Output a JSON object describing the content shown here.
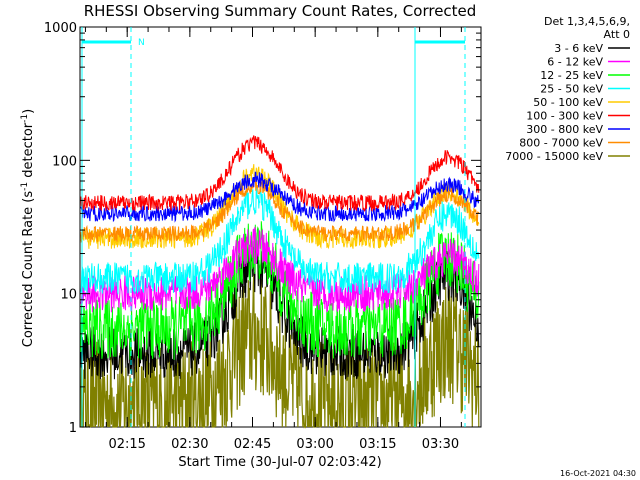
{
  "chart_data": {
    "type": "line",
    "title": "RHESSI Observing Summary Count Rates, Corrected",
    "xlabel": "Start Time (30-Jul-07 02:03:42)",
    "ylabel_main": "Corrected Count Rate (s",
    "ylabel_sup1": "-1",
    "ylabel_mid": " detector",
    "ylabel_sup2": "-1",
    "ylabel_end": ")",
    "yscale": "log",
    "ylim": [
      1,
      1000
    ],
    "xlim_minutes_after_0203": [
      0,
      36.5
    ],
    "yticks": [
      "1",
      "10",
      "100",
      "1000"
    ],
    "xticks": [
      "02:15",
      "02:30",
      "02:45",
      "03:00",
      "03:15",
      "03:30"
    ],
    "legend": {
      "header_line1": "Det 1,3,4,5,6,9,",
      "header_line2": "Att 0",
      "placement": "right"
    },
    "series": [
      {
        "name": "3 - 6 keV",
        "color": "#000000",
        "profile": {
          "base": 3.6,
          "peak1": 16,
          "peak2": 14,
          "noise": 0.05
        }
      },
      {
        "name": "6 - 12 keV",
        "color": "#ff00ff",
        "profile": {
          "base": 10,
          "peak1": 23,
          "peak2": 19,
          "noise": 0.035
        }
      },
      {
        "name": "12 - 25 keV",
        "color": "#00ff00",
        "profile": {
          "base": 5.5,
          "peak1": 22,
          "peak2": 19,
          "noise": 0.06
        }
      },
      {
        "name": "25 - 50 keV",
        "color": "#00ffff",
        "profile": {
          "base": 13,
          "peak1": 50,
          "peak2": 40,
          "noise": 0.03
        }
      },
      {
        "name": "50 - 100 keV",
        "color": "#ffcc00",
        "profile": {
          "base": 26,
          "peak1": 80,
          "peak2": 58,
          "noise": 0.02
        }
      },
      {
        "name": "100 - 300 keV",
        "color": "#ff0000",
        "profile": {
          "base": 48,
          "peak1": 135,
          "peak2": 105,
          "noise": 0.015
        }
      },
      {
        "name": "300 - 800 keV",
        "color": "#0000ff",
        "profile": {
          "base": 40,
          "peak1": 72,
          "peak2": 66,
          "noise": 0.015
        }
      },
      {
        "name": "800 - 7000 keV",
        "color": "#ff8c00",
        "profile": {
          "base": 28,
          "peak1": 65,
          "peak2": 55,
          "noise": 0.015
        }
      },
      {
        "name": "7000 - 15000 keV",
        "color": "#808000",
        "profile": {
          "base": 1.5,
          "peak1": 5,
          "peak2": 4.5,
          "noise": 0.12
        }
      }
    ],
    "markers": [
      {
        "label": "N",
        "color": "#00ffff"
      }
    ]
  },
  "footer": {
    "timestamp": "16-Oct-2021 04:30"
  }
}
